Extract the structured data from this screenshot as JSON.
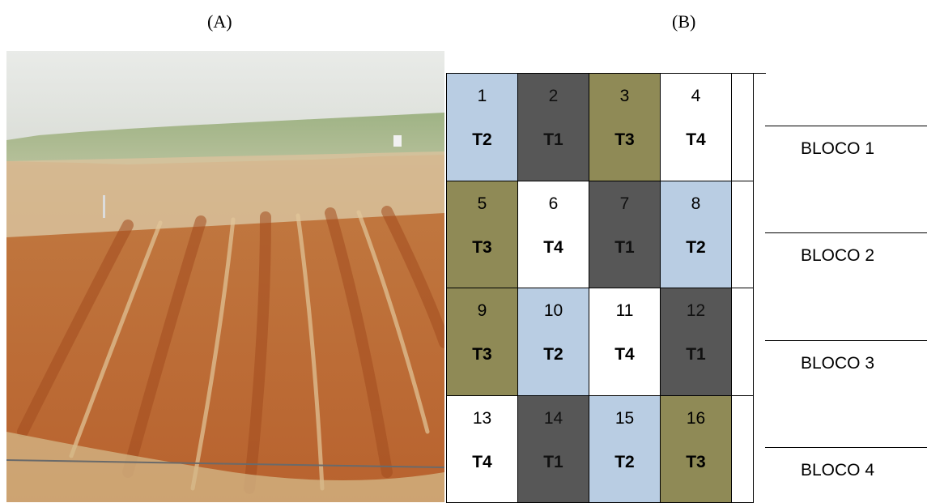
{
  "panels": {
    "a_label": "(A)",
    "b_label": "(B)"
  },
  "colors": {
    "T1": "#575757",
    "T2": "#b9cde3",
    "T3": "#8f8a56",
    "T4": "#ffffff"
  },
  "plots": [
    {
      "num": "1",
      "trt": "T2"
    },
    {
      "num": "2",
      "trt": "T1"
    },
    {
      "num": "3",
      "trt": "T3"
    },
    {
      "num": "4",
      "trt": "T4"
    },
    {
      "num": "5",
      "trt": "T3"
    },
    {
      "num": "6",
      "trt": "T4"
    },
    {
      "num": "7",
      "trt": "T1"
    },
    {
      "num": "8",
      "trt": "T2"
    },
    {
      "num": "9",
      "trt": "T3"
    },
    {
      "num": "10",
      "trt": "T2"
    },
    {
      "num": "11",
      "trt": "T4"
    },
    {
      "num": "12",
      "trt": "T1"
    },
    {
      "num": "13",
      "trt": "T4"
    },
    {
      "num": "14",
      "trt": "T1"
    },
    {
      "num": "15",
      "trt": "T2"
    },
    {
      "num": "16",
      "trt": "T3"
    }
  ],
  "blocks": [
    "BLOCO 1",
    "BLOCO 2",
    "BLOCO 3",
    "BLOCO 4"
  ]
}
